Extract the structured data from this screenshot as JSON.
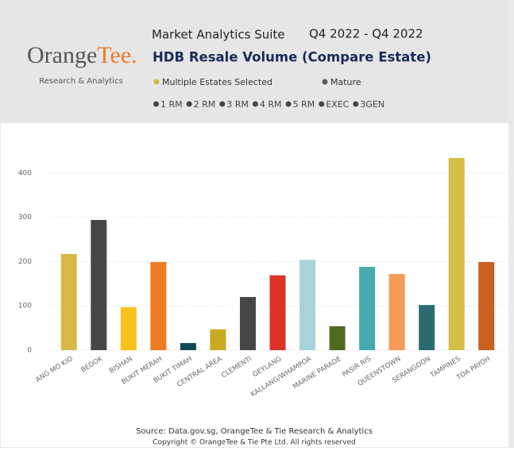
{
  "header": {
    "suite": "Market Analytics Suite",
    "period": "Q4 2022 - Q4 2022",
    "logo_main": "Orange",
    "logo_accent": "Tee.",
    "logo_sub": "Research & Analytics",
    "filters": [
      {
        "label": "Multiple Estates Selected",
        "color": "#d4b93c"
      },
      {
        "label": "Mature",
        "color": "#5a5a5a"
      }
    ],
    "flat_types": [
      "1 RM",
      "2 RM",
      "3 RM",
      "4 RM",
      "5 RM",
      "EXEC",
      "3GEN"
    ]
  },
  "chart_data": {
    "type": "bar",
    "title": "HDB Resale Volume (Compare Estate)",
    "categories": [
      "ANG MO KIO",
      "BEDOK",
      "BISHAN",
      "BUKIT MERAH",
      "BUKIT TIMAH",
      "CENTRAL AREA",
      "CLEMENTI",
      "GEYLANG",
      "KALLANG/WHAMPOA",
      "MARINE PARADE",
      "PASIR RIS",
      "QUEENSTOWN",
      "SERANGOON",
      "TAMPINES",
      "TOA PAYOH"
    ],
    "values": [
      217,
      294,
      97,
      199,
      16,
      47,
      120,
      169,
      204,
      54,
      188,
      172,
      102,
      434,
      199
    ],
    "colors": [
      "#d6b944",
      "#474747",
      "#f7c21a",
      "#f07a22",
      "#0e4a54",
      "#c9a91f",
      "#464646",
      "#dd3228",
      "#a7d3d9",
      "#4e6b1e",
      "#45a9ae",
      "#f59a58",
      "#2d6b72",
      "#d5bf45",
      "#c8601e"
    ],
    "ylim": [
      0,
      450
    ],
    "yticks": [
      0,
      100,
      200,
      300,
      400
    ],
    "grid": true
  },
  "footer": {
    "source": "Source: Data.gov.sg, OrangeTee & Tie Research & Analytics",
    "copyright": "Copyright © OrangeTee & Tie Pte Ltd. All rights reserved"
  }
}
